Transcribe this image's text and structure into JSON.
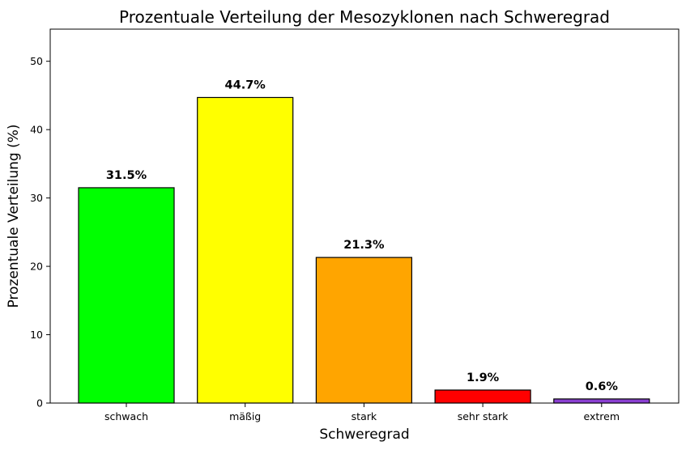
{
  "chart_data": {
    "type": "bar",
    "title": "Prozentuale Verteilung der Mesozyklonen nach Schweregrad",
    "xlabel": "Schweregrad",
    "ylabel": "Prozentuale Verteilung (%)",
    "categories": [
      "schwach",
      "mäßig",
      "stark",
      "sehr stark",
      "extrem"
    ],
    "values": [
      31.5,
      44.7,
      21.3,
      1.9,
      0.6
    ],
    "data_labels": [
      "31.5%",
      "44.7%",
      "21.3%",
      "1.9%",
      "0.6%"
    ],
    "colors": [
      "#00ff00",
      "#ffff00",
      "#ffa500",
      "#ff0000",
      "#8a3fd1"
    ],
    "edge_color": "#000000",
    "ylim": [
      0,
      54.7
    ],
    "yticks": [
      0,
      10,
      20,
      30,
      40,
      50
    ],
    "ytick_labels": [
      "0",
      "10",
      "20",
      "30",
      "40",
      "50"
    ],
    "grid": false,
    "legend": "none"
  }
}
